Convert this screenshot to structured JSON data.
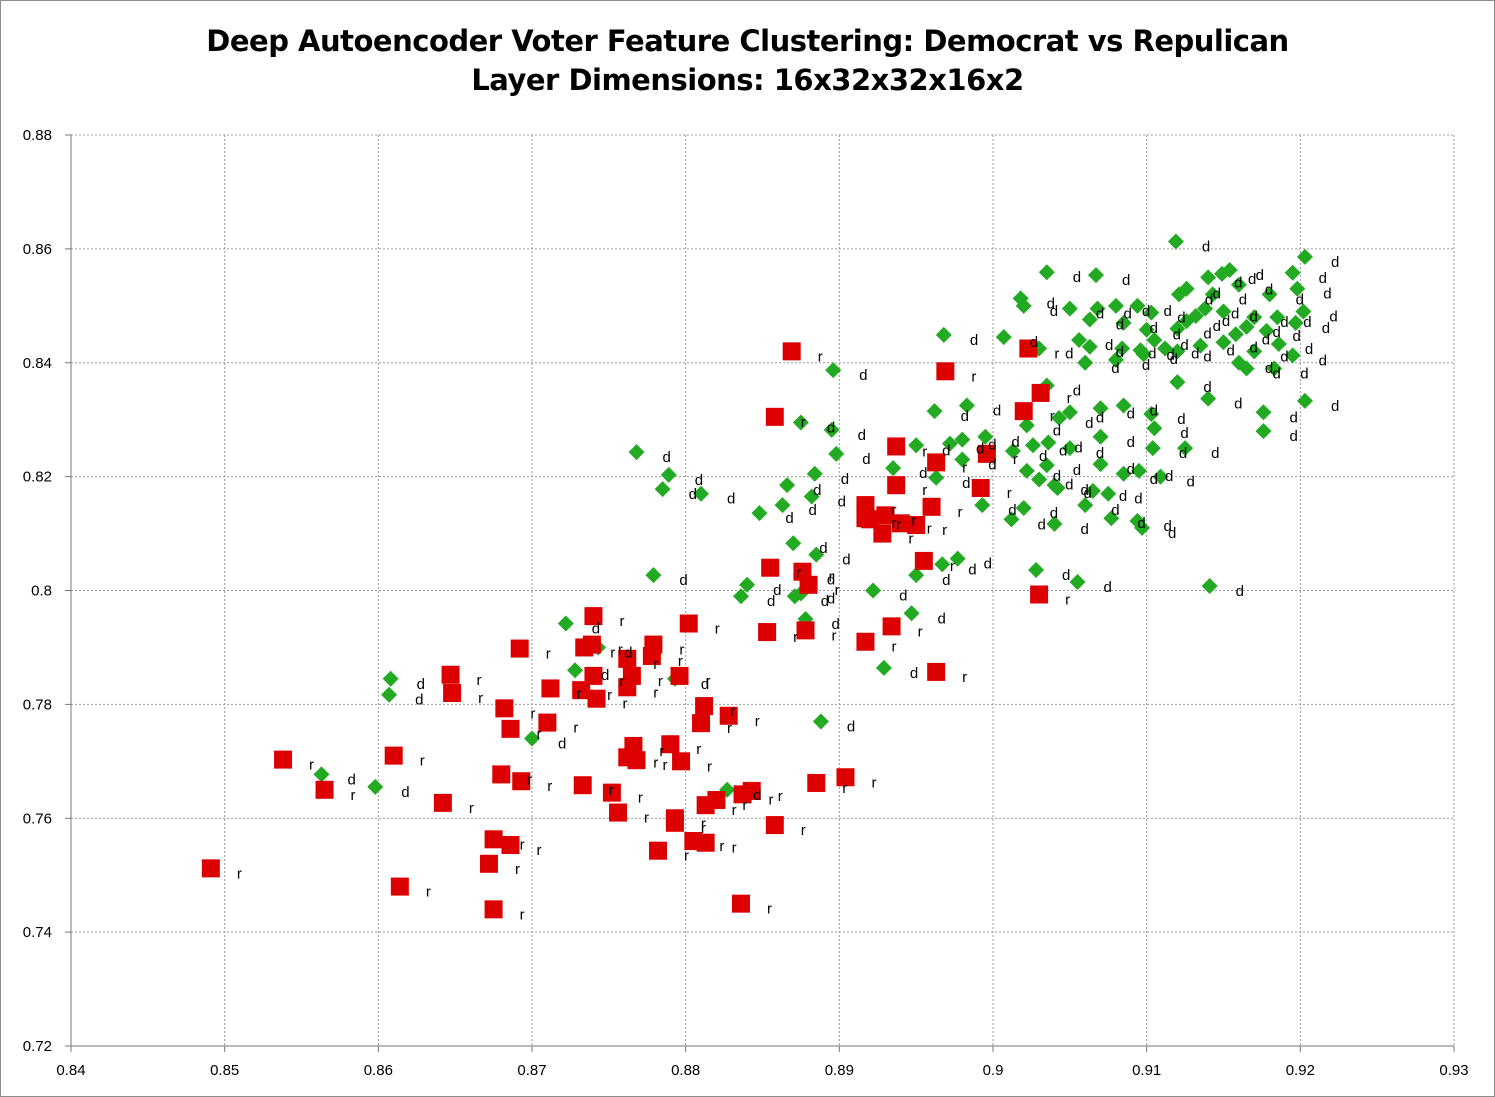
{
  "chart_data": {
    "type": "scatter",
    "title": "Deep Autoencoder Voter Feature Clustering: Democrat vs Repulican",
    "subtitle": "Layer Dimensions: 16x32x32x16x2",
    "xlabel": "",
    "ylabel": "",
    "xlim": [
      0.84,
      0.93
    ],
    "ylim": [
      0.72,
      0.88
    ],
    "xticks": [
      "0.84",
      "0.85",
      "0.86",
      "0.87",
      "0.88",
      "0.89",
      "0.9",
      "0.91",
      "0.92",
      "0.93"
    ],
    "yticks": [
      "0.72",
      "0.74",
      "0.76",
      "0.78",
      "0.8",
      "0.82",
      "0.84",
      "0.86",
      "0.88"
    ],
    "grid": true,
    "legend": "none",
    "series": [
      {
        "name": "Democrat",
        "label": "d",
        "color": "#22aa22",
        "marker": "diamond",
        "points": [
          [
            0.9119,
            0.8613
          ],
          [
            0.9203,
            0.8586
          ],
          [
            0.9035,
            0.8559
          ],
          [
            0.9067,
            0.8554
          ],
          [
            0.9154,
            0.8563
          ],
          [
            0.9149,
            0.8556
          ],
          [
            0.914,
            0.855
          ],
          [
            0.9195,
            0.8558
          ],
          [
            0.9018,
            0.8513
          ],
          [
            0.9121,
            0.852
          ],
          [
            0.9126,
            0.853
          ],
          [
            0.916,
            0.8537
          ],
          [
            0.9198,
            0.853
          ],
          [
            0.9143,
            0.852
          ],
          [
            0.918,
            0.852
          ],
          [
            0.9202,
            0.849
          ],
          [
            0.902,
            0.85
          ],
          [
            0.905,
            0.8495
          ],
          [
            0.9068,
            0.8495
          ],
          [
            0.908,
            0.85
          ],
          [
            0.9094,
            0.85
          ],
          [
            0.9103,
            0.8488
          ],
          [
            0.9132,
            0.8482
          ],
          [
            0.9138,
            0.8495
          ],
          [
            0.915,
            0.849
          ],
          [
            0.917,
            0.848
          ],
          [
            0.9185,
            0.848
          ],
          [
            0.9197,
            0.847
          ],
          [
            0.9063,
            0.8476
          ],
          [
            0.9085,
            0.847
          ],
          [
            0.91,
            0.8458
          ],
          [
            0.9126,
            0.8473
          ],
          [
            0.9165,
            0.8463
          ],
          [
            0.9178,
            0.8456
          ],
          [
            0.8968,
            0.8449
          ],
          [
            0.9007,
            0.8445
          ],
          [
            0.9056,
            0.844
          ],
          [
            0.9105,
            0.844
          ],
          [
            0.912,
            0.846
          ],
          [
            0.9158,
            0.845
          ],
          [
            0.9186,
            0.8433
          ],
          [
            0.903,
            0.8425
          ],
          [
            0.9063,
            0.8428
          ],
          [
            0.9084,
            0.8425
          ],
          [
            0.9096,
            0.8422
          ],
          [
            0.9112,
            0.8425
          ],
          [
            0.9135,
            0.843
          ],
          [
            0.915,
            0.8436
          ],
          [
            0.917,
            0.842
          ],
          [
            0.906,
            0.84
          ],
          [
            0.908,
            0.8405
          ],
          [
            0.9098,
            0.8415
          ],
          [
            0.912,
            0.842
          ],
          [
            0.916,
            0.84
          ],
          [
            0.9183,
            0.839
          ],
          [
            0.9195,
            0.8413
          ],
          [
            0.9165,
            0.839
          ],
          [
            0.912,
            0.8366
          ],
          [
            0.9035,
            0.836
          ],
          [
            0.914,
            0.8337
          ],
          [
            0.9203,
            0.8333
          ],
          [
            0.8896,
            0.8387
          ],
          [
            0.8983,
            0.8325
          ],
          [
            0.8962,
            0.8315
          ],
          [
            0.9043,
            0.8303
          ],
          [
            0.905,
            0.8313
          ],
          [
            0.907,
            0.832
          ],
          [
            0.9085,
            0.8325
          ],
          [
            0.9103,
            0.831
          ],
          [
            0.9176,
            0.8313
          ],
          [
            0.9176,
            0.828
          ],
          [
            0.9105,
            0.8285
          ],
          [
            0.9022,
            0.829
          ],
          [
            0.9036,
            0.826
          ],
          [
            0.9026,
            0.8255
          ],
          [
            0.905,
            0.825
          ],
          [
            0.907,
            0.827
          ],
          [
            0.898,
            0.8265
          ],
          [
            0.8972,
            0.8258
          ],
          [
            0.8995,
            0.827
          ],
          [
            0.9013,
            0.8245
          ],
          [
            0.9104,
            0.825
          ],
          [
            0.9125,
            0.825
          ],
          [
            0.895,
            0.8255
          ],
          [
            0.8935,
            0.8215
          ],
          [
            0.8963,
            0.8198
          ],
          [
            0.898,
            0.823
          ],
          [
            0.9022,
            0.821
          ],
          [
            0.9035,
            0.822
          ],
          [
            0.907,
            0.8222
          ],
          [
            0.9085,
            0.8205
          ],
          [
            0.9095,
            0.821
          ],
          [
            0.9109,
            0.82
          ],
          [
            0.9042,
            0.818
          ],
          [
            0.9065,
            0.8175
          ],
          [
            0.903,
            0.8195
          ],
          [
            0.8993,
            0.815
          ],
          [
            0.902,
            0.8145
          ],
          [
            0.904,
            0.8185
          ],
          [
            0.9075,
            0.817
          ],
          [
            0.904,
            0.8117
          ],
          [
            0.906,
            0.815
          ],
          [
            0.9012,
            0.8125
          ],
          [
            0.9077,
            0.8127
          ],
          [
            0.9094,
            0.8122
          ],
          [
            0.9097,
            0.811
          ],
          [
            0.8768,
            0.8243
          ],
          [
            0.8789,
            0.8203
          ],
          [
            0.8785,
            0.8178
          ],
          [
            0.881,
            0.817
          ],
          [
            0.8866,
            0.8185
          ],
          [
            0.8882,
            0.8165
          ],
          [
            0.8863,
            0.815
          ],
          [
            0.8848,
            0.8136
          ],
          [
            0.8898,
            0.824
          ],
          [
            0.8895,
            0.8282
          ],
          [
            0.8875,
            0.8295
          ],
          [
            0.887,
            0.8083
          ],
          [
            0.8885,
            0.8063
          ],
          [
            0.884,
            0.801
          ],
          [
            0.8836,
            0.799
          ],
          [
            0.8871,
            0.799
          ],
          [
            0.8878,
            0.795
          ],
          [
            0.8922,
            0.8
          ],
          [
            0.895,
            0.8027
          ],
          [
            0.8967,
            0.8046
          ],
          [
            0.8977,
            0.8056
          ],
          [
            0.8947,
            0.796
          ],
          [
            0.9028,
            0.8036
          ],
          [
            0.9055,
            0.8015
          ],
          [
            0.9141,
            0.8008
          ],
          [
            0.8929,
            0.7864
          ],
          [
            0.8888,
            0.777
          ],
          [
            0.8779,
            0.8027
          ],
          [
            0.8722,
            0.7942
          ],
          [
            0.8743,
            0.79
          ],
          [
            0.8728,
            0.786
          ],
          [
            0.8793,
            0.7845
          ],
          [
            0.87,
            0.774
          ],
          [
            0.8608,
            0.7845
          ],
          [
            0.8607,
            0.7817
          ],
          [
            0.8563,
            0.7677
          ],
          [
            0.8598,
            0.7655
          ],
          [
            0.8827,
            0.765
          ],
          [
            0.8884,
            0.8205
          ],
          [
            0.8875,
            0.8028
          ],
          [
            0.8875,
            0.7995
          ]
        ]
      },
      {
        "name": "Republican",
        "label": "r",
        "color": "#dd0000",
        "marker": "square",
        "points": [
          [
            0.8869,
            0.842
          ],
          [
            0.8969,
            0.8385
          ],
          [
            0.9023,
            0.8425
          ],
          [
            0.9031,
            0.8347
          ],
          [
            0.902,
            0.8315
          ],
          [
            0.8858,
            0.8305
          ],
          [
            0.8937,
            0.8253
          ],
          [
            0.8963,
            0.8225
          ],
          [
            0.8996,
            0.824
          ],
          [
            0.8992,
            0.818
          ],
          [
            0.8937,
            0.8185
          ],
          [
            0.8917,
            0.815
          ],
          [
            0.893,
            0.8132
          ],
          [
            0.8917,
            0.8127
          ],
          [
            0.892,
            0.8125
          ],
          [
            0.8928,
            0.81
          ],
          [
            0.895,
            0.8115
          ],
          [
            0.896,
            0.8147
          ],
          [
            0.894,
            0.8118
          ],
          [
            0.8955,
            0.8052
          ],
          [
            0.8855,
            0.804
          ],
          [
            0.8876,
            0.8033
          ],
          [
            0.888,
            0.801
          ],
          [
            0.8853,
            0.7927
          ],
          [
            0.8878,
            0.793
          ],
          [
            0.8917,
            0.791
          ],
          [
            0.8934,
            0.7937
          ],
          [
            0.8963,
            0.7857
          ],
          [
            0.903,
            0.7993
          ],
          [
            0.874,
            0.7955
          ],
          [
            0.8802,
            0.7942
          ],
          [
            0.8739,
            0.7905
          ],
          [
            0.8734,
            0.79
          ],
          [
            0.8779,
            0.7905
          ],
          [
            0.8778,
            0.7885
          ],
          [
            0.8762,
            0.788
          ],
          [
            0.8692,
            0.7898
          ],
          [
            0.874,
            0.785
          ],
          [
            0.8765,
            0.785
          ],
          [
            0.8762,
            0.783
          ],
          [
            0.8796,
            0.785
          ],
          [
            0.8732,
            0.7825
          ],
          [
            0.8742,
            0.781
          ],
          [
            0.8712,
            0.7828
          ],
          [
            0.8647,
            0.7852
          ],
          [
            0.8648,
            0.782
          ],
          [
            0.8682,
            0.7793
          ],
          [
            0.8686,
            0.7757
          ],
          [
            0.871,
            0.7768
          ],
          [
            0.8812,
            0.7797
          ],
          [
            0.881,
            0.7767
          ],
          [
            0.8828,
            0.778
          ],
          [
            0.8766,
            0.7727
          ],
          [
            0.879,
            0.773
          ],
          [
            0.8762,
            0.7707
          ],
          [
            0.8768,
            0.7702
          ],
          [
            0.8797,
            0.77
          ],
          [
            0.8538,
            0.7703
          ],
          [
            0.861,
            0.771
          ],
          [
            0.8565,
            0.765
          ],
          [
            0.868,
            0.7677
          ],
          [
            0.8693,
            0.7665
          ],
          [
            0.8733,
            0.7658
          ],
          [
            0.8752,
            0.7645
          ],
          [
            0.8756,
            0.761
          ],
          [
            0.8642,
            0.7627
          ],
          [
            0.8793,
            0.76
          ],
          [
            0.8793,
            0.7592
          ],
          [
            0.8813,
            0.7623
          ],
          [
            0.882,
            0.7632
          ],
          [
            0.8837,
            0.7642
          ],
          [
            0.8843,
            0.7648
          ],
          [
            0.8885,
            0.7662
          ],
          [
            0.8904,
            0.7672
          ],
          [
            0.8858,
            0.7588
          ],
          [
            0.8675,
            0.7563
          ],
          [
            0.8686,
            0.7553
          ],
          [
            0.8805,
            0.756
          ],
          [
            0.8813,
            0.7557
          ],
          [
            0.8782,
            0.7543
          ],
          [
            0.8672,
            0.752
          ],
          [
            0.8491,
            0.7512
          ],
          [
            0.8614,
            0.748
          ],
          [
            0.8675,
            0.744
          ],
          [
            0.8836,
            0.745
          ]
        ]
      }
    ]
  }
}
